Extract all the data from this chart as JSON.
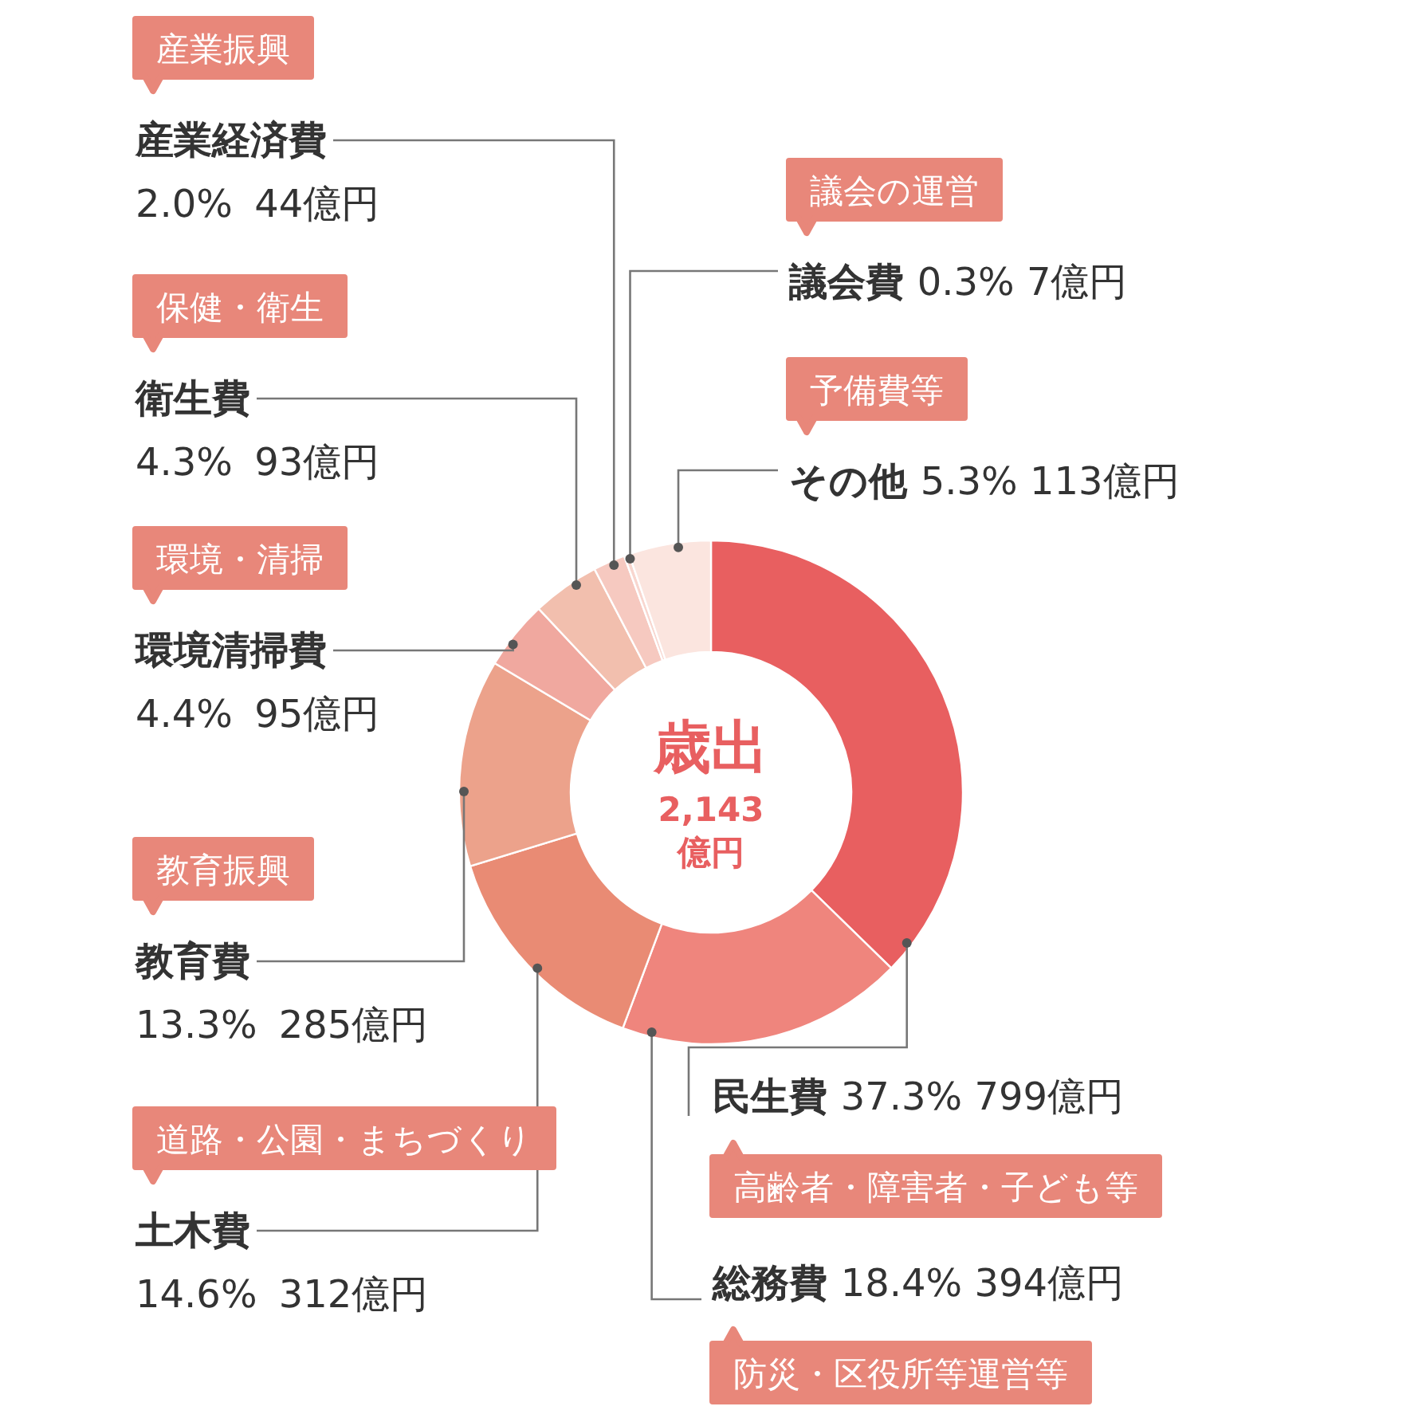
{
  "chart_data": {
    "type": "donut",
    "title": "歳出",
    "subtitle": "2,143億円",
    "categories": [
      "民生費",
      "総務費",
      "土木費",
      "教育費",
      "環境清掃費",
      "衛生費",
      "産業経済費",
      "議会費",
      "その他"
    ],
    "values": [
      799,
      394,
      312,
      285,
      95,
      93,
      44,
      7,
      113
    ],
    "value_labels": [
      "37.3% 799億円",
      "18.4% 394億円",
      "14.6% 312億円",
      "13.3% 285億円",
      "4.4% 95億円",
      "4.3% 93億円",
      "2.0% 44億円",
      "0.3% 7億円",
      "5.3% 113億円"
    ],
    "colors": [
      "#e85f60",
      "#ef857d",
      "#e98b74",
      "#eca28b",
      "#f0a89f",
      "#f2bfae",
      "#f6c9c0",
      "#f8d6cf",
      "#fbe5df"
    ],
    "annotations": [
      "高齢者・障害者・子ども等",
      "防災・区役所等運営等",
      "道路・公園・まちづくり",
      "教育振興",
      "環境・清掃",
      "保健・衛生",
      "産業振興",
      "議会の運営",
      "予備費等"
    ]
  }
}
